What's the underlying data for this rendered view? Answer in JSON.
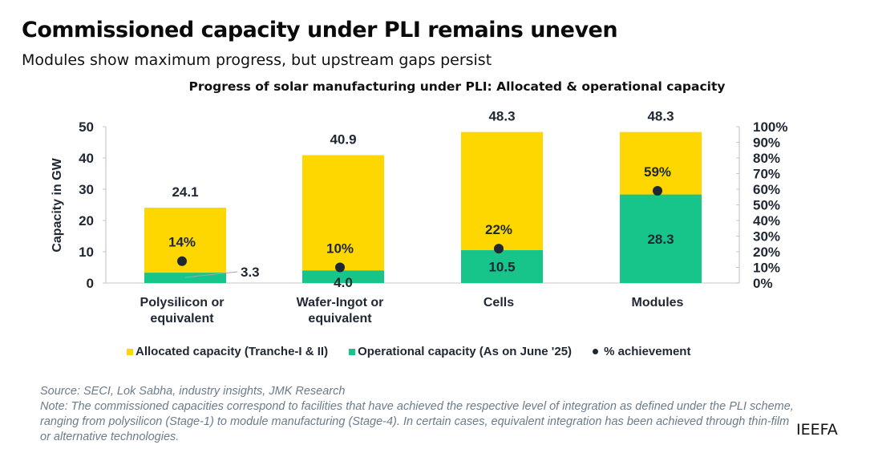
{
  "header": {
    "title": "Commissioned capacity under PLI remains uneven",
    "subtitle": "Modules show maximum progress, but upstream gaps persist"
  },
  "chart_data": {
    "type": "bar",
    "title": "Progress of solar manufacturing under PLI: Allocated & operational capacity",
    "xlabel": "",
    "ylabel": "Capacity in GW",
    "ylim": [
      0,
      50
    ],
    "yticks": [
      "0",
      "10",
      "20",
      "30",
      "40",
      "50"
    ],
    "y2lim": [
      0,
      100
    ],
    "y2ticks": [
      "0%",
      "10%",
      "20%",
      "30%",
      "40%",
      "50%",
      "60%",
      "70%",
      "80%",
      "90%",
      "100%"
    ],
    "categories": [
      "Polysilicon or equivalent",
      "Wafer-Ingot or equivalent",
      "Cells",
      "Modules"
    ],
    "category_lines": [
      [
        "Polysilicon or",
        "equivalent"
      ],
      [
        "Wafer-Ingot or",
        "equivalent"
      ],
      [
        "Cells"
      ],
      [
        "Modules"
      ]
    ],
    "series": [
      {
        "name": "Allocated capacity (Tranche-I & II)",
        "type": "bar",
        "axis": "left",
        "color": "#FFD700",
        "values": [
          24.1,
          40.9,
          48.3,
          48.3
        ],
        "labels": [
          "24.1",
          "40.9",
          "48.3",
          "48.3"
        ]
      },
      {
        "name": "Operational capacity (As on June '25)",
        "type": "bar",
        "axis": "left",
        "color": "#17C48A",
        "values": [
          3.3,
          4.0,
          10.5,
          28.3
        ],
        "labels": [
          "3.3",
          "4.0",
          "10.5",
          "28.3"
        ]
      },
      {
        "name": "% achievement",
        "type": "scatter",
        "axis": "right",
        "color": "#1F2733",
        "values": [
          14,
          10,
          22,
          59
        ],
        "labels": [
          "14%",
          "10%",
          "22%",
          "59%"
        ]
      }
    ],
    "grid": false,
    "legend": "bottom"
  },
  "notes": {
    "source": "Source: SECI, Lok Sabha, industry insights, JMK Research",
    "note": "Note: The commissioned capacities correspond to facilities that have achieved the respective level of integration as defined under the PLI scheme, ranging from polysilicon (Stage-1) to module manufacturing (Stage-4). In certain cases, equivalent integration has been achieved through thin-film or alternative technologies."
  },
  "brand": "IEEFA"
}
